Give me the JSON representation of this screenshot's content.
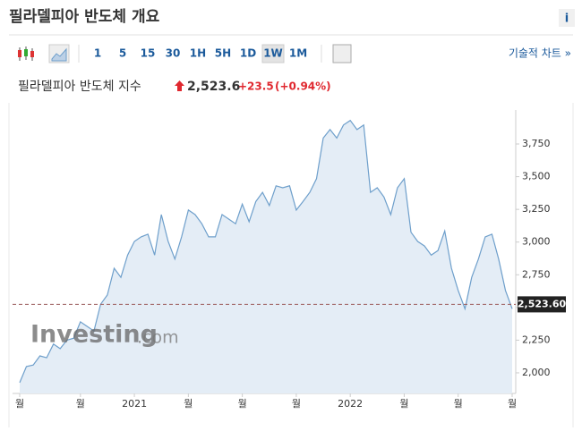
{
  "header": {
    "title": "필라델피아 반도체 개요",
    "info_icon": "i"
  },
  "toolbar": {
    "intervals": [
      "1",
      "5",
      "15",
      "30",
      "1H",
      "5H",
      "1D",
      "1W",
      "1M"
    ],
    "selected": "1W",
    "tech_link": "기술적 차트 »"
  },
  "quote": {
    "name": "필라델피아 반도체 지수",
    "price": "2,523.6",
    "change": "+23.5",
    "change_pct": "(+0.94%)"
  },
  "watermark": [
    "Investing",
    ".com"
  ],
  "chart_data": {
    "type": "area",
    "color": "#6e9fcb",
    "fill": "#e4edf6",
    "categories": [
      "월",
      null,
      null,
      null,
      null,
      null,
      null,
      null,
      null,
      "월",
      null,
      null,
      null,
      null,
      null,
      null,
      null,
      "2021",
      null,
      null,
      null,
      null,
      null,
      null,
      null,
      "월",
      null,
      null,
      null,
      null,
      null,
      null,
      null,
      "월",
      null,
      null,
      null,
      null,
      null,
      null,
      null,
      "월",
      null,
      null,
      null,
      null,
      null,
      null,
      null,
      "2022",
      null,
      null,
      null,
      null,
      null,
      null,
      null,
      "월",
      null,
      null,
      null,
      null,
      null,
      null,
      null,
      "월",
      null,
      null,
      null,
      null,
      null,
      null,
      null,
      "월"
    ],
    "values": [
      1925,
      2048,
      2060,
      2130,
      2115,
      2220,
      2185,
      2250,
      2265,
      2390,
      2355,
      2320,
      2525,
      2595,
      2800,
      2730,
      2900,
      3005,
      3040,
      3060,
      2900,
      3210,
      3005,
      2870,
      3040,
      3245,
      3210,
      3140,
      3040,
      3040,
      3210,
      3175,
      3140,
      3290,
      3155,
      3310,
      3380,
      3280,
      3430,
      3415,
      3430,
      3245,
      3310,
      3380,
      3485,
      3795,
      3860,
      3795,
      3895,
      3930,
      3860,
      3895,
      3380,
      3415,
      3345,
      3210,
      3415,
      3485,
      3075,
      3005,
      2970,
      2900,
      2935,
      3085,
      2800,
      2630,
      2490,
      2730,
      2870,
      3040,
      3060,
      2870,
      2630,
      2490
    ],
    "ylim": [
      1863,
      4010
    ],
    "yticks": [
      {
        "value": 2000,
        "label": "2,000"
      },
      {
        "value": 2250,
        "label": "2,250"
      },
      {
        "value": 2500,
        "label": "2,500"
      },
      {
        "value": 2750,
        "label": "2,750"
      },
      {
        "value": 3000,
        "label": "3,000"
      },
      {
        "value": 3250,
        "label": "3,250"
      },
      {
        "value": 3500,
        "label": "3,500"
      },
      {
        "value": 3750,
        "label": "3,750"
      }
    ],
    "last_price": {
      "value": 2523.6,
      "label": "2,523.60"
    },
    "grid": false
  }
}
